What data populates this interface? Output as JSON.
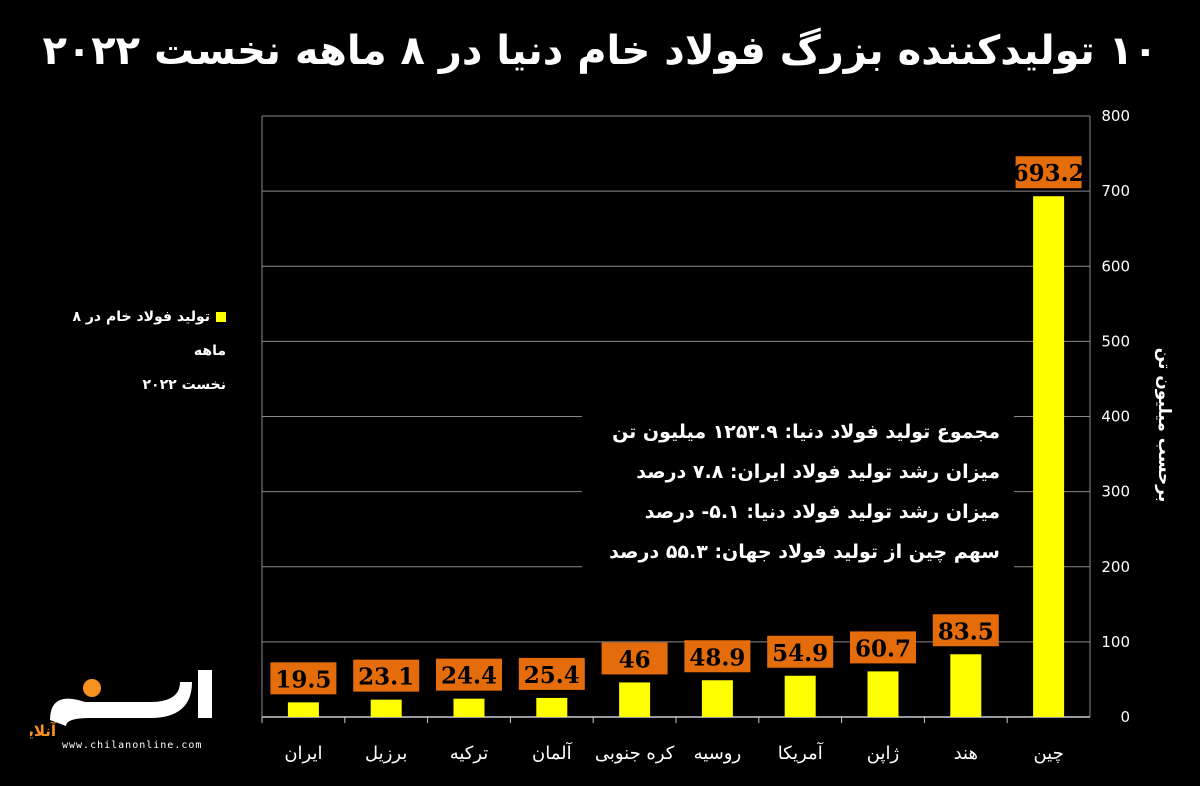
{
  "chart_data": {
    "type": "bar",
    "title": "۱۰ تولیدکننده بزرگ فولاد خام دنیا در ۸ ماهه نخست ۲۰۲۲",
    "categories": [
      "ایران",
      "برزیل",
      "ترکیه",
      "آلمان",
      "کره جنوبی",
      "روسیه",
      "آمریکا",
      "ژاپن",
      "هند",
      "چین"
    ],
    "series": [
      {
        "name": "تولید فولاد خام در ۸ ماهه نخست ۲۰۲۲",
        "values": [
          19.5,
          23.1,
          24.4,
          25.4,
          46,
          48.9,
          54.9,
          60.7,
          83.5,
          693.2
        ]
      }
    ],
    "data_labels": [
      "19.5",
      "23.1",
      "24.4",
      "25.4",
      "46",
      "48.9",
      "54.9",
      "60.7",
      "83.5",
      "693.2"
    ],
    "ylabel": "برحسب میلیون تن",
    "xlabel": "",
    "ylim": [
      0,
      800
    ],
    "yticks": [
      "0",
      "100",
      "200",
      "300",
      "400",
      "500",
      "600",
      "700",
      "800"
    ],
    "grid": true,
    "y_axis_side": "right",
    "legend": {
      "placement": "left",
      "line1": "تولید فولاد خام در ۸ ماهه",
      "line2": "نخست ۲۰۲۲"
    },
    "annotations": [
      "مجموع تولید فولاد دنیا: ۱۲۵۳.۹ میلیون تن",
      "میزان رشد تولید فولاد ایران: ۷.۸ درصد",
      "میزان رشد تولید فولاد دنیا: ۵.۱- درصد",
      "سهم چین از تولید فولاد جهان: ۵۵.۳ درصد"
    ],
    "colors": {
      "bar": "#ffff00",
      "label_bg": "#e46c0a",
      "grid": "#888888",
      "background": "#000000"
    }
  },
  "branding": {
    "logo_text": "چیلان",
    "logo_subtext": "آنلاین",
    "site": "www.chilanonline.com"
  }
}
